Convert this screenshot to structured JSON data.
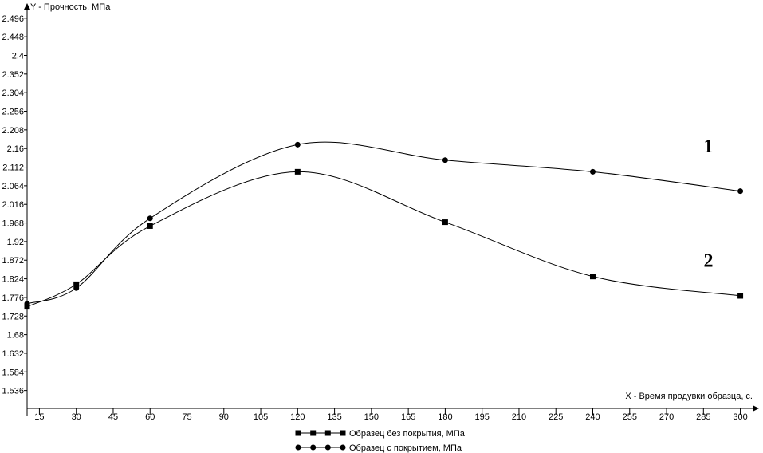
{
  "chart_data": {
    "type": "line",
    "ylabel": "Y - Прочность, МПа",
    "xlabel": "X - Время продувки образца, с.",
    "x_ticks": [
      "15",
      "30",
      "45",
      "60",
      "75",
      "90",
      "105",
      "120",
      "135",
      "150",
      "165",
      "180",
      "195",
      "210",
      "225",
      "240",
      "255",
      "270",
      "285",
      "300"
    ],
    "y_ticks": [
      "2.496",
      "2.448",
      "2.4",
      "2.352",
      "2.304",
      "2.256",
      "2.208",
      "2.16",
      "2.112",
      "2.064",
      "2.016",
      "1.968",
      "1.92",
      "1.872",
      "1.824",
      "1.776",
      "1.728",
      "1.68",
      "1.632",
      "1.584",
      "1.536"
    ],
    "xlim": [
      10,
      305
    ],
    "ylim": [
      1.49,
      2.51
    ],
    "grid": false,
    "legend_position": "bottom-center",
    "series": [
      {
        "name": "Образец без покрытия, МПа",
        "marker": "square",
        "x": [
          10,
          30,
          60,
          120,
          180,
          240,
          300
        ],
        "y": [
          1.752,
          1.81,
          1.96,
          2.1,
          1.97,
          1.83,
          1.78
        ]
      },
      {
        "name": "Образец с покрытием, МПа",
        "marker": "circle",
        "x": [
          10,
          30,
          60,
          120,
          180,
          240,
          300
        ],
        "y": [
          1.76,
          1.8,
          1.98,
          2.17,
          2.13,
          2.1,
          2.05
        ]
      }
    ],
    "annotations": [
      {
        "text": "1",
        "x": 287,
        "y": 2.15
      },
      {
        "text": "2",
        "x": 287,
        "y": 1.855
      }
    ]
  }
}
